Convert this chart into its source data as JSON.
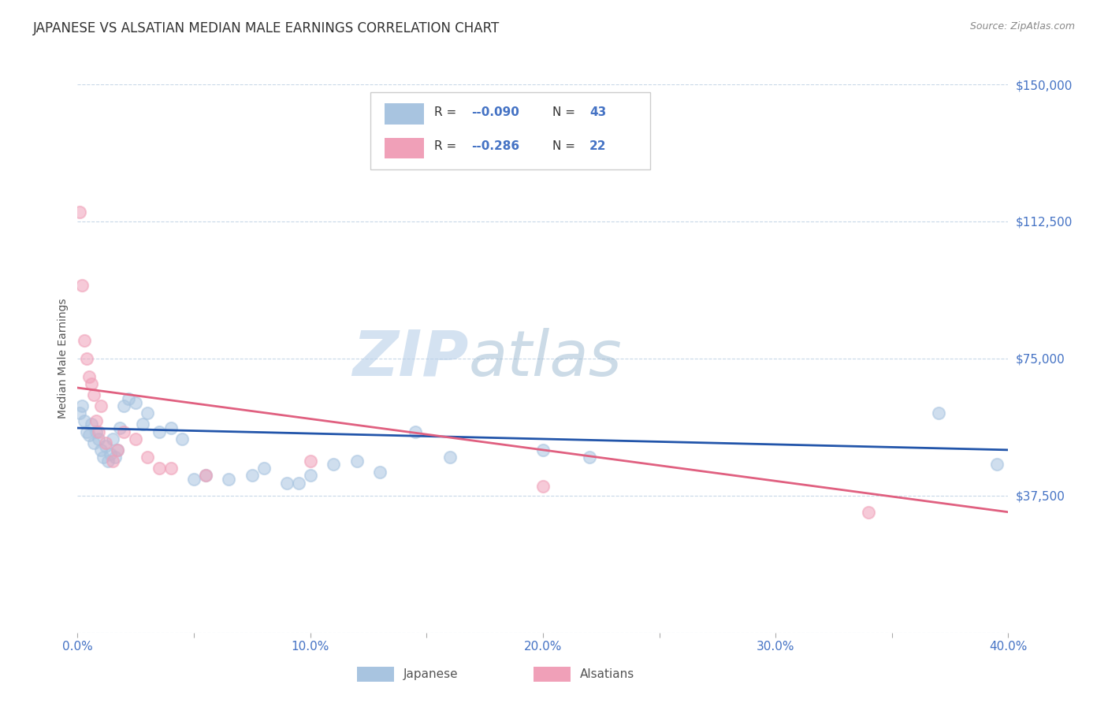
{
  "title": "JAPANESE VS ALSATIAN MEDIAN MALE EARNINGS CORRELATION CHART",
  "source_text": "Source: ZipAtlas.com",
  "ylabel": "Median Male Earnings",
  "xlim": [
    0.0,
    0.4
  ],
  "ylim": [
    0,
    150000
  ],
  "yticks": [
    0,
    37500,
    75000,
    112500,
    150000
  ],
  "ytick_labels": [
    "",
    "$37,500",
    "$75,000",
    "$112,500",
    "$150,000"
  ],
  "xticks": [
    0.0,
    0.05,
    0.1,
    0.15,
    0.2,
    0.25,
    0.3,
    0.35,
    0.4
  ],
  "xtick_labels": [
    "0.0%",
    "",
    "10.0%",
    "",
    "20.0%",
    "",
    "30.0%",
    "",
    "40.0%"
  ],
  "title_color": "#333333",
  "axis_color": "#4472c4",
  "watermark_zip": "ZIP",
  "watermark_atlas": "atlas",
  "legend_R_japanese": "-0.090",
  "legend_N_japanese": "43",
  "legend_R_alsatian": "-0.286",
  "legend_N_alsatian": "22",
  "japanese_color": "#a8c4e0",
  "japanese_line_color": "#2255aa",
  "alsatian_color": "#f0a0b8",
  "alsatian_line_color": "#e06080",
  "japanese_points_x": [
    0.001,
    0.002,
    0.003,
    0.004,
    0.005,
    0.006,
    0.007,
    0.008,
    0.009,
    0.01,
    0.011,
    0.012,
    0.013,
    0.014,
    0.015,
    0.016,
    0.017,
    0.018,
    0.02,
    0.022,
    0.025,
    0.028,
    0.03,
    0.035,
    0.04,
    0.045,
    0.05,
    0.055,
    0.065,
    0.075,
    0.08,
    0.09,
    0.095,
    0.1,
    0.11,
    0.12,
    0.13,
    0.145,
    0.16,
    0.2,
    0.22,
    0.37,
    0.395
  ],
  "japanese_points_y": [
    60000,
    62000,
    58000,
    55000,
    54000,
    57000,
    52000,
    55000,
    53000,
    50000,
    48000,
    51000,
    47000,
    49000,
    53000,
    48000,
    50000,
    56000,
    62000,
    64000,
    63000,
    57000,
    60000,
    55000,
    56000,
    53000,
    42000,
    43000,
    42000,
    43000,
    45000,
    41000,
    41000,
    43000,
    46000,
    47000,
    44000,
    55000,
    48000,
    50000,
    48000,
    60000,
    46000
  ],
  "alsatian_points_x": [
    0.001,
    0.002,
    0.003,
    0.004,
    0.005,
    0.006,
    0.007,
    0.008,
    0.009,
    0.01,
    0.012,
    0.015,
    0.017,
    0.02,
    0.025,
    0.03,
    0.035,
    0.04,
    0.055,
    0.1,
    0.2,
    0.34
  ],
  "alsatian_points_y": [
    115000,
    95000,
    80000,
    75000,
    70000,
    68000,
    65000,
    58000,
    55000,
    62000,
    52000,
    47000,
    50000,
    55000,
    53000,
    48000,
    45000,
    45000,
    43000,
    47000,
    40000,
    33000
  ],
  "japanese_trend_x": [
    0.0,
    0.4
  ],
  "japanese_trend_y": [
    56000,
    50000
  ],
  "alsatian_trend_x": [
    0.0,
    0.4
  ],
  "alsatian_trend_y": [
    67000,
    33000
  ],
  "background_color": "#ffffff",
  "grid_color": "#c8d8e8",
  "dot_size": 120,
  "dot_alpha": 0.55,
  "line_width": 2.0
}
